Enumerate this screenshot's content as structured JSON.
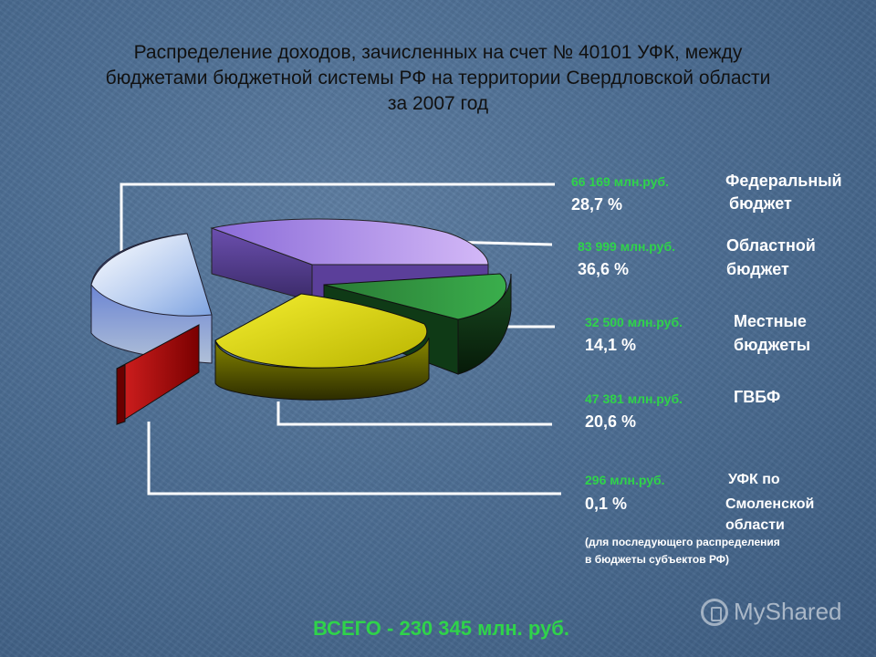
{
  "title": {
    "line1": "Распределение доходов, зачисленных на счет № 40101 УФК, между",
    "line2": "бюджетами бюджетной системы РФ на территории Свердловской области",
    "line3": "за  2007 год"
  },
  "chart_data": {
    "type": "pie",
    "style": "3d-exploded",
    "slices": [
      {
        "amount": "66 169 млн.руб.",
        "percent_label": "28,7 %",
        "percent": 28.7,
        "name_line1": "Федеральный",
        "name_line2": "бюджет",
        "color": "#c9d8f2"
      },
      {
        "amount": "83 999 млн.руб.",
        "percent_label": "36,6 %",
        "percent": 36.6,
        "name_line1": "Областной",
        "name_line2": "бюджет",
        "color": "#a98be0"
      },
      {
        "amount": "32 500 млн.руб.",
        "percent_label": "14,1 %",
        "percent": 14.1,
        "name_line1": "Местные",
        "name_line2": "бюджеты",
        "color": "#2f8a3c"
      },
      {
        "amount": "47 381 млн.руб.",
        "percent_label": "20,6 %",
        "percent": 20.6,
        "name_line1": "ГВБФ",
        "name_line2": "",
        "color": "#d6d21a"
      },
      {
        "amount": "296 млн.руб.",
        "percent_label": "0,1 %",
        "percent": 0.1,
        "name_line1": "УФК по",
        "name_line2": "Смоленской",
        "name_line3": "области",
        "color": "#c81010"
      }
    ],
    "note_line1": "(для последующего распределения",
    "note_line2": "в бюджеты субъектов РФ)"
  },
  "total": "ВСЕГО -  230 345 млн. руб.",
  "watermark": "MyShared"
}
